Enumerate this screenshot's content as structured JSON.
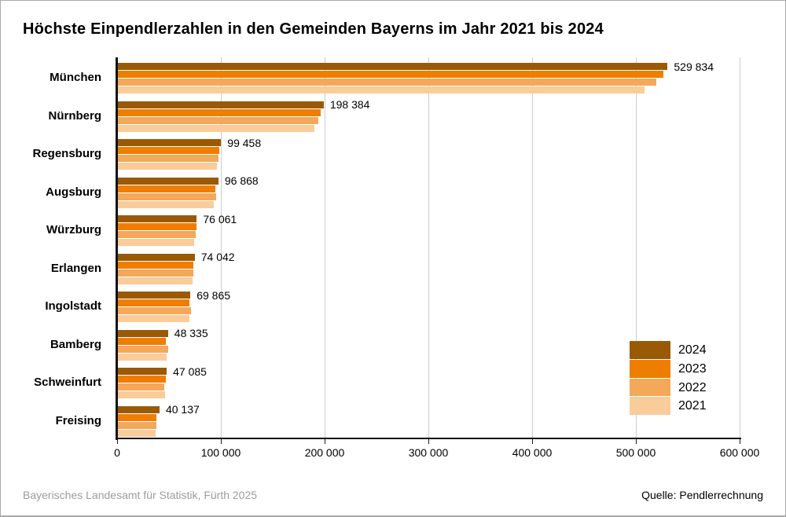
{
  "title": "Höchste Einpendlerzahlen in den Gemeinden Bayerns im Jahr 2021 bis 2024",
  "footer": {
    "left": "Bayerisches Landesamt für Statistik, Fürth 2025",
    "right": "Quelle: Pendlerrechnung"
  },
  "chart_data": {
    "type": "bar",
    "orientation": "horizontal",
    "title": "Höchste Einpendlerzahlen in den Gemeinden Bayerns im Jahr 2021 bis 2024",
    "categories": [
      "München",
      "Nürnberg",
      "Regensburg",
      "Augsburg",
      "Würzburg",
      "Erlangen",
      "Ingolstadt",
      "Bamberg",
      "Schweinfurt",
      "Freising"
    ],
    "series": [
      {
        "name": "2024",
        "color": "#9A5A05",
        "values": [
          529834,
          198384,
          99458,
          96868,
          76061,
          74042,
          69865,
          48335,
          47085,
          40137
        ]
      },
      {
        "name": "2023",
        "color": "#EF7D00",
        "values": [
          525800,
          195500,
          97600,
          94100,
          75500,
          72600,
          69200,
          46500,
          45900,
          37000
        ]
      },
      {
        "name": "2022",
        "color": "#F5A75A",
        "values": [
          519000,
          193000,
          97100,
          94600,
          75100,
          73100,
          70800,
          48200,
          45000,
          37400
        ]
      },
      {
        "name": "2021",
        "color": "#FACC99",
        "values": [
          507600,
          189500,
          95100,
          92100,
          73400,
          71600,
          69300,
          47100,
          45500,
          36500
        ]
      }
    ],
    "value_labels": [
      "529 834",
      "198 384",
      "99 458",
      "96 868",
      "76 061",
      "74 042",
      "69 865",
      "48 335",
      "47 085",
      "40 137"
    ],
    "value_labels_note": "labels shown for 2024 series only; other years estimated from bar lengths",
    "xlim": [
      0,
      600000
    ],
    "x_ticks": [
      0,
      100000,
      200000,
      300000,
      400000,
      500000,
      600000
    ],
    "x_tick_labels": [
      "0",
      "100 000",
      "200 000",
      "300 000",
      "400 000",
      "500 000",
      "600 000"
    ],
    "grid": true,
    "legend_position": "inside-right-lower",
    "legend_entries": [
      "2024",
      "2023",
      "2022",
      "2021"
    ],
    "axis_color": "#111111",
    "gridline_color": "#cccccc"
  }
}
